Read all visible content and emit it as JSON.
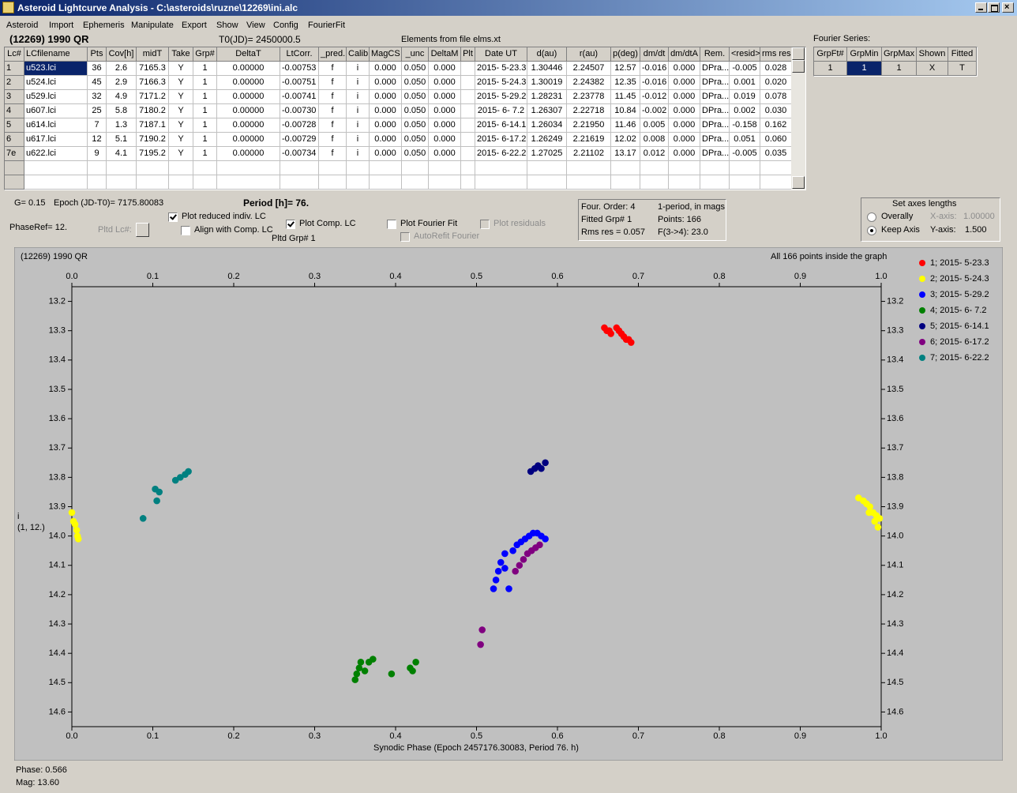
{
  "window": {
    "title": "Asteroid Lightcurve Analysis - C:\\asteroids\\ruzne\\12269\\ini.alc"
  },
  "menu": [
    "Asteroid",
    "Import",
    "Ephemeris",
    "Manipulate",
    "Export",
    "Show",
    "View",
    "Config",
    "FourierFit"
  ],
  "header": {
    "object": "(12269) 1990 QR",
    "t0": "T0(JD)= 2450000.5",
    "elements": "Elements from file elms.xt"
  },
  "table": {
    "columns": [
      "Lc#",
      "LCfilename",
      "Pts",
      "Cov[h]",
      "midT",
      "Take",
      "Grp#",
      "DeltaT",
      "LtCorr.",
      "_pred.",
      "Calib.",
      "MagCS",
      "_unc",
      "DeltaM",
      "Plt",
      "Date UT",
      "d(au)",
      "r(au)",
      "p(deg)",
      "dm/dt",
      "dm/dtA",
      "Rem.",
      "<resid>",
      "rms res"
    ],
    "rows": [
      [
        "1",
        "u523.lci",
        "36",
        "2.6",
        "7165.3",
        "Y",
        "1",
        "0.00000",
        "-0.00753",
        "f",
        "i",
        "0.000",
        "0.050",
        "0.000",
        null,
        "2015- 5-23.3",
        "1.30446",
        "2.24507",
        "12.57",
        "-0.016",
        "0.000",
        "DPra...",
        "-0.005",
        "0.028"
      ],
      [
        "2",
        "u524.lci",
        "45",
        "2.9",
        "7166.3",
        "Y",
        "1",
        "0.00000",
        "-0.00751",
        "f",
        "i",
        "0.000",
        "0.050",
        "0.000",
        null,
        "2015- 5-24.3",
        "1.30019",
        "2.24382",
        "12.35",
        "-0.016",
        "0.000",
        "DPra...",
        "0.001",
        "0.020"
      ],
      [
        "3",
        "u529.lci",
        "32",
        "4.9",
        "7171.2",
        "Y",
        "1",
        "0.00000",
        "-0.00741",
        "f",
        "i",
        "0.000",
        "0.050",
        "0.000",
        null,
        "2015- 5-29.2",
        "1.28231",
        "2.23778",
        "11.45",
        "-0.012",
        "0.000",
        "DPra...",
        "0.019",
        "0.078"
      ],
      [
        "4",
        "u607.lci",
        "25",
        "5.8",
        "7180.2",
        "Y",
        "1",
        "0.00000",
        "-0.00730",
        "f",
        "i",
        "0.000",
        "0.050",
        "0.000",
        null,
        "2015- 6- 7.2",
        "1.26307",
        "2.22718",
        "10.84",
        "-0.002",
        "0.000",
        "DPra...",
        "0.002",
        "0.030"
      ],
      [
        "5",
        "u614.lci",
        "7",
        "1.3",
        "7187.1",
        "Y",
        "1",
        "0.00000",
        "-0.00728",
        "f",
        "i",
        "0.000",
        "0.050",
        "0.000",
        null,
        "2015- 6-14.1",
        "1.26034",
        "2.21950",
        "11.46",
        "0.005",
        "0.000",
        "DPra...",
        "-0.158",
        "0.162"
      ],
      [
        "6",
        "u617.lci",
        "12",
        "5.1",
        "7190.2",
        "Y",
        "1",
        "0.00000",
        "-0.00729",
        "f",
        "i",
        "0.000",
        "0.050",
        "0.000",
        null,
        "2015- 6-17.2",
        "1.26249",
        "2.21619",
        "12.02",
        "0.008",
        "0.000",
        "DPra...",
        "0.051",
        "0.060"
      ],
      [
        "7e",
        "u622.lci",
        "9",
        "4.1",
        "7195.2",
        "Y",
        "1",
        "0.00000",
        "-0.00734",
        "f",
        "i",
        "0.000",
        "0.050",
        "0.000",
        null,
        "2015- 6-22.2",
        "1.27025",
        "2.21102",
        "13.17",
        "0.012",
        "0.000",
        "DPra...",
        "-0.005",
        "0.035"
      ]
    ]
  },
  "fourier": {
    "label": "Fourier Series:",
    "columns": [
      "GrpFt#",
      "GrpMin",
      "GrpMax",
      "Shown",
      "Fitted"
    ],
    "row": [
      "1",
      "1",
      "1",
      "X",
      "T"
    ]
  },
  "controls": {
    "g": "G= 0.15",
    "epoch": "Epoch (JD-T0)= 7175.80083",
    "period": "Period [h]= 76.",
    "phaseref": "PhaseRef= 12.",
    "pltd_lc": "Pltd Lc#:",
    "pltd_grp": "Pltd Grp#  1",
    "checks": [
      {
        "label": "Plot reduced indiv. LC",
        "checked": true,
        "enabled": true
      },
      {
        "label": "Align with Comp. LC",
        "checked": false,
        "enabled": true
      },
      {
        "label": "Plot Comp. LC",
        "checked": true,
        "enabled": true
      },
      {
        "label": "Plot Fourier Fit",
        "checked": false,
        "enabled": true
      },
      {
        "label": "AutoRefit Fourier",
        "checked": false,
        "enabled": false
      },
      {
        "label": "Plot residuals",
        "checked": false,
        "enabled": false
      }
    ]
  },
  "info": [
    "Four. Order:  4",
    "1-period, in mags",
    "Fitted Grp# 1",
    "Points: 166",
    "Rms res     = 0.057",
    "F(3->4):  23.0"
  ],
  "axes_box": {
    "title": "Set axes lengths",
    "options": [
      {
        "label": "Overally",
        "selected": false
      },
      {
        "label": "Keep Axis",
        "selected": true
      }
    ],
    "x_label": "X-axis:",
    "x_value": "1.00000",
    "y_label": "Y-axis:",
    "y_value": "1.500"
  },
  "chart_data": {
    "type": "scatter",
    "title": "(12269) 1990 QR",
    "annotation": "All 166 points inside the graph",
    "xlabel": "Synodic Phase (Epoch 2457176.30083, Period 76. h)",
    "ylabel": [
      "i",
      "(1, 12.)"
    ],
    "xlim": [
      0,
      1
    ],
    "ylim": [
      13.15,
      14.65
    ],
    "invert_y": true,
    "xticks": [
      {
        "value": 0,
        "label": "0.0"
      },
      0.1,
      0.2,
      0.3,
      0.4,
      0.5,
      0.6,
      0.7,
      0.8,
      0.9,
      {
        "value": 1,
        "label": "1.0"
      }
    ],
    "yticks": [
      13.2,
      13.3,
      13.4,
      13.5,
      13.6,
      13.7,
      13.8,
      13.9,
      {
        "value": 14,
        "label": "14.0"
      },
      14.1,
      14.2,
      14.3,
      14.4,
      14.5,
      14.6
    ],
    "background": "#c0c0c0",
    "legend": "right",
    "series": [
      {
        "name": "1; 2015- 5-23.3",
        "color": "#ff0000",
        "x": [
          0.658,
          0.661,
          0.664,
          0.666,
          0.673,
          0.676,
          0.679,
          0.682,
          0.685,
          0.688,
          0.691
        ],
        "values": [
          13.29,
          13.3,
          13.3,
          13.31,
          13.29,
          13.3,
          13.31,
          13.32,
          13.33,
          13.33,
          13.34
        ]
      },
      {
        "name": "2; 2015- 5-24.3",
        "color": "#ffff00",
        "x": [
          0.0,
          0.002,
          0.004,
          0.006,
          0.007,
          0.008,
          0.972,
          0.978,
          0.982,
          0.986,
          0.99,
          0.994,
          0.998,
          0.985,
          0.992,
          0.996
        ],
        "values": [
          13.92,
          13.95,
          13.96,
          13.98,
          14.0,
          14.01,
          13.87,
          13.88,
          13.89,
          13.9,
          13.92,
          13.93,
          13.94,
          13.92,
          13.95,
          13.97
        ]
      },
      {
        "name": "3; 2015- 5-29.2",
        "color": "#0000ff",
        "x": [
          0.521,
          0.524,
          0.527,
          0.53,
          0.535,
          0.54,
          0.545,
          0.55,
          0.555,
          0.56,
          0.565,
          0.57,
          0.575,
          0.58,
          0.585,
          0.535
        ],
        "values": [
          14.18,
          14.15,
          14.12,
          14.09,
          14.06,
          14.18,
          14.05,
          14.03,
          14.02,
          14.01,
          14.0,
          13.99,
          13.99,
          14.0,
          14.01,
          14.11
        ]
      },
      {
        "name": "4; 2015- 6- 7.2",
        "color": "#008000",
        "x": [
          0.35,
          0.352,
          0.355,
          0.357,
          0.362,
          0.367,
          0.372,
          0.395,
          0.418,
          0.421,
          0.425
        ],
        "values": [
          14.49,
          14.47,
          14.45,
          14.43,
          14.46,
          14.43,
          14.42,
          14.47,
          14.45,
          14.46,
          14.43
        ]
      },
      {
        "name": "5; 2015- 6-14.1",
        "color": "#000080",
        "x": [
          0.567,
          0.572,
          0.576,
          0.58,
          0.585
        ],
        "values": [
          13.78,
          13.77,
          13.76,
          13.77,
          13.75
        ]
      },
      {
        "name": "6; 2015- 6-17.2",
        "color": "#800080",
        "x": [
          0.505,
          0.507,
          0.548,
          0.553,
          0.558,
          0.563,
          0.568,
          0.573,
          0.578
        ],
        "values": [
          14.37,
          14.32,
          14.12,
          14.1,
          14.08,
          14.06,
          14.05,
          14.04,
          14.03
        ]
      },
      {
        "name": "7; 2015- 6-22.2",
        "color": "#008080",
        "x": [
          0.088,
          0.103,
          0.105,
          0.108,
          0.128,
          0.134,
          0.14,
          0.144
        ],
        "values": [
          13.94,
          13.84,
          13.88,
          13.85,
          13.81,
          13.8,
          13.79,
          13.78
        ]
      }
    ]
  },
  "status": {
    "phase": "Phase:  0.566",
    "mag": "Mag:    13.60"
  }
}
